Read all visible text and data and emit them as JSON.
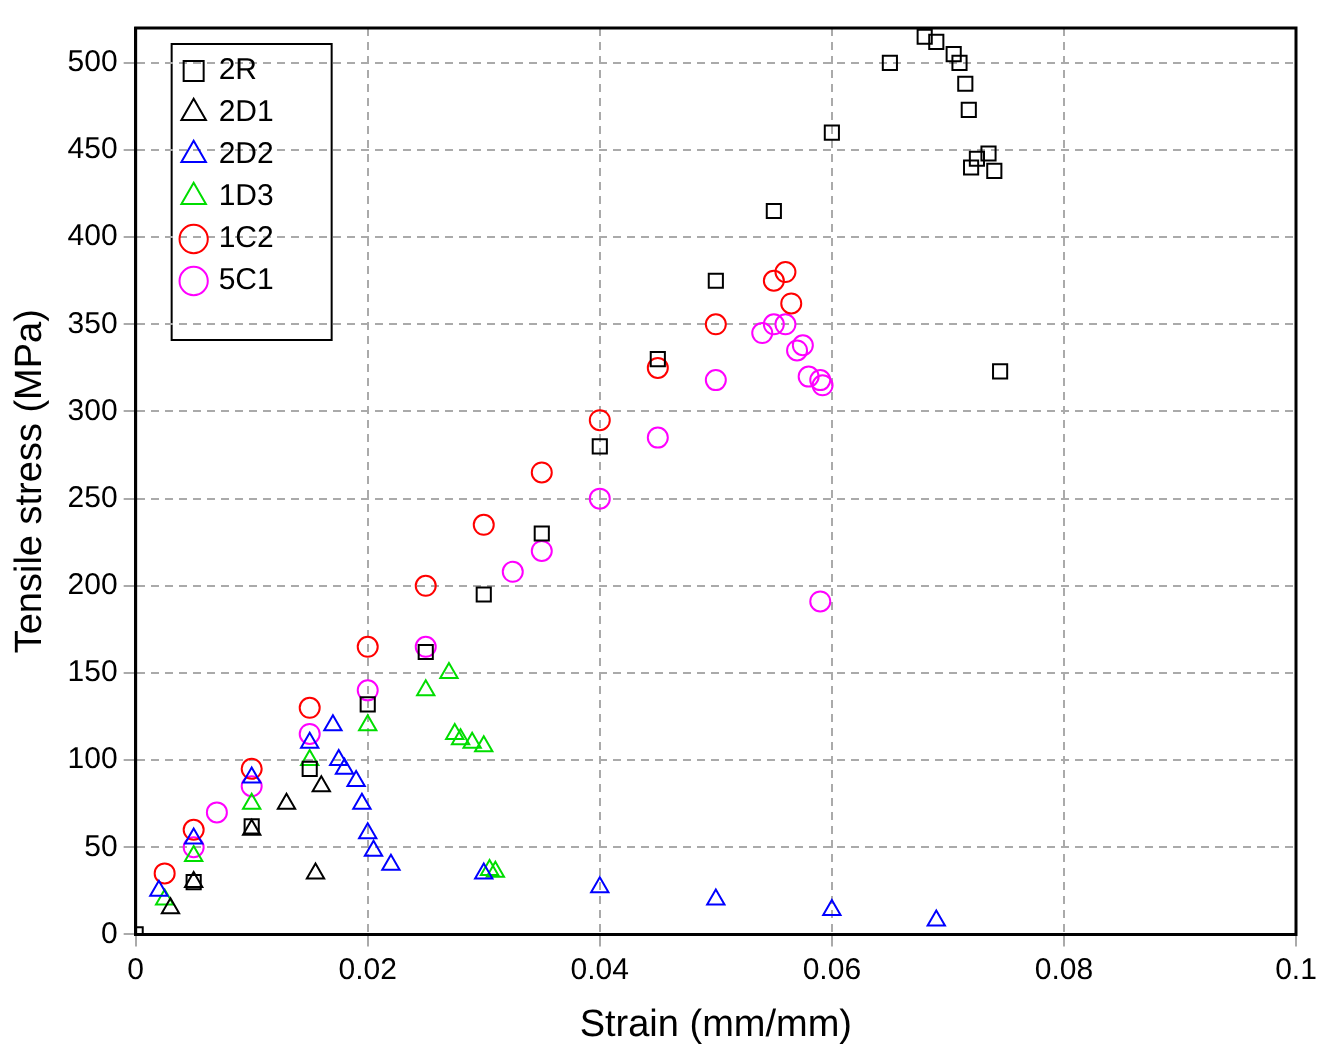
{
  "chart_data": {
    "type": "scatter",
    "xlabel": "Strain (mm/mm)",
    "ylabel": "Tensile stress (MPa)",
    "xlim": [
      0,
      0.1
    ],
    "xticks": [
      0,
      0.02,
      0.04,
      0.06,
      0.08,
      0.1
    ],
    "ylim": [
      0,
      520
    ],
    "yticks": [
      0,
      50,
      100,
      150,
      200,
      250,
      300,
      350,
      400,
      450,
      500
    ],
    "grid": true,
    "legend": "top left",
    "series": [
      {
        "name": "2R",
        "color": "#000000",
        "marker": "square",
        "x": [
          0,
          0.005,
          0.01,
          0.015,
          0.02,
          0.025,
          0.03,
          0.035,
          0.04,
          0.045,
          0.05,
          0.055,
          0.06,
          0.065,
          0.068,
          0.069,
          0.0705,
          0.071,
          0.0715,
          0.0718,
          0.072,
          0.0725,
          0.0735,
          0.074,
          0.0745
        ],
        "values": [
          0,
          30,
          62,
          95,
          132,
          162,
          195,
          230,
          280,
          330,
          375,
          415,
          460,
          500,
          515,
          512,
          505,
          500,
          488,
          473,
          440,
          445,
          448,
          438,
          323
        ]
      },
      {
        "name": "2D1",
        "color": "#000000",
        "marker": "triangle",
        "x": [
          0.003,
          0.005,
          0.01,
          0.013,
          0.016,
          0.0155
        ],
        "values": [
          15,
          30,
          60,
          75,
          85,
          35
        ]
      },
      {
        "name": "2D2",
        "color": "#0000ff",
        "marker": "triangle",
        "x": [
          0.002,
          0.005,
          0.01,
          0.015,
          0.017,
          0.0175,
          0.018,
          0.019,
          0.0195,
          0.02,
          0.0205,
          0.022,
          0.03,
          0.04,
          0.05,
          0.06,
          0.069
        ],
        "values": [
          25,
          55,
          90,
          110,
          120,
          100,
          95,
          88,
          75,
          58,
          48,
          40,
          35,
          27,
          20,
          14,
          8
        ]
      },
      {
        "name": "1D3",
        "color": "#00dd00",
        "marker": "triangle",
        "x": [
          0.0025,
          0.005,
          0.01,
          0.015,
          0.02,
          0.025,
          0.027,
          0.0275,
          0.028,
          0.029,
          0.03,
          0.0305,
          0.031
        ],
        "values": [
          20,
          45,
          75,
          100,
          120,
          140,
          150,
          115,
          112,
          110,
          108,
          37,
          36
        ]
      },
      {
        "name": "1C2",
        "color": "#ff0000",
        "marker": "circle",
        "x": [
          0.0025,
          0.005,
          0.01,
          0.015,
          0.02,
          0.025,
          0.03,
          0.035,
          0.04,
          0.045,
          0.05,
          0.055,
          0.056,
          0.0565
        ],
        "values": [
          35,
          60,
          95,
          130,
          165,
          200,
          235,
          265,
          295,
          325,
          350,
          375,
          380,
          362
        ]
      },
      {
        "name": "5C1",
        "color": "#ff00ff",
        "marker": "circle",
        "x": [
          0.007,
          0.005,
          0.01,
          0.015,
          0.02,
          0.025,
          0.0325,
          0.035,
          0.04,
          0.045,
          0.05,
          0.054,
          0.055,
          0.056,
          0.057,
          0.0575,
          0.058,
          0.059,
          0.0592,
          0.059
        ],
        "values": [
          70,
          50,
          85,
          115,
          140,
          165,
          208,
          220,
          250,
          285,
          318,
          345,
          350,
          350,
          335,
          338,
          320,
          318,
          315,
          191
        ]
      }
    ]
  }
}
